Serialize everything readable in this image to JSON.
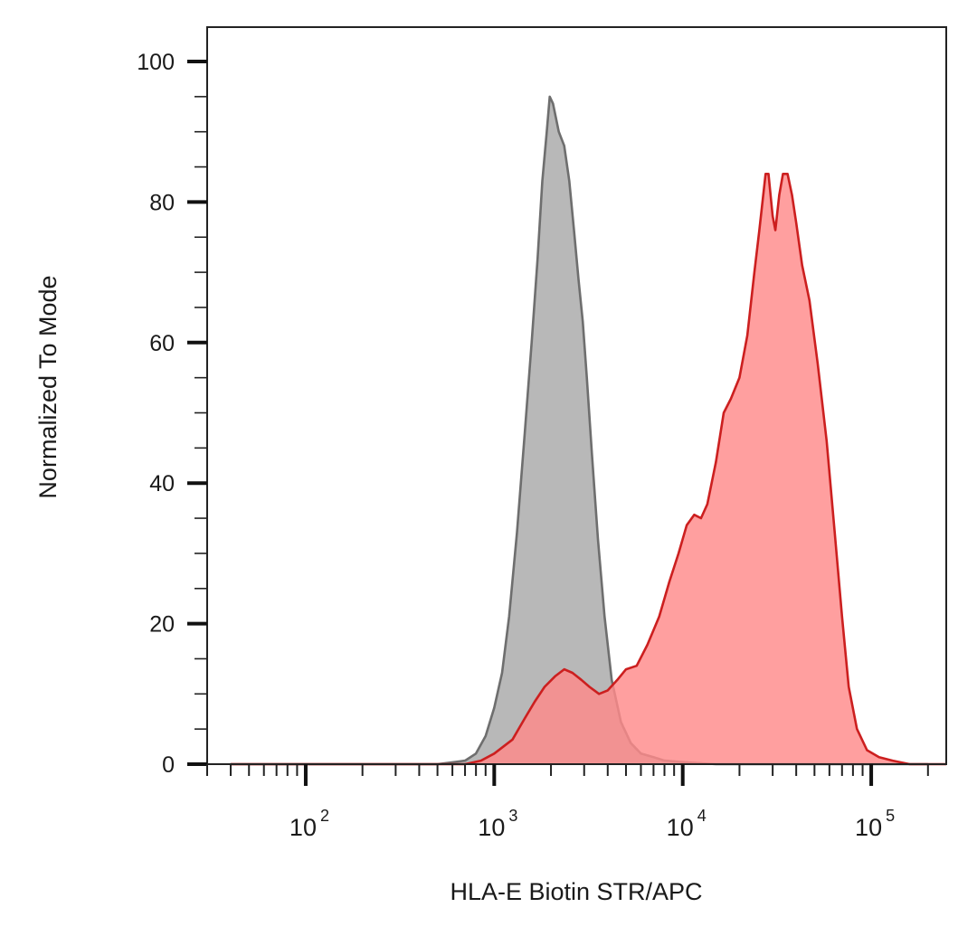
{
  "chart_data": {
    "type": "area",
    "title": "",
    "xlabel": "HLA-E Biotin STR/APC",
    "ylabel": "Normalized To Mode",
    "xscale": "log",
    "xlim": [
      30,
      250000
    ],
    "ylim": [
      0,
      100
    ],
    "grid": false,
    "legend": "none",
    "yticks": [
      {
        "value": 0,
        "label": "0"
      },
      {
        "value": 20,
        "label": "20"
      },
      {
        "value": 40,
        "label": "40"
      },
      {
        "value": 60,
        "label": "60"
      },
      {
        "value": 80,
        "label": "80"
      },
      {
        "value": 100,
        "label": "100"
      }
    ],
    "xticks": [
      {
        "value": 100,
        "base": "10",
        "exp": "2"
      },
      {
        "value": 1000,
        "base": "10",
        "exp": "3"
      },
      {
        "value": 10000,
        "base": "10",
        "exp": "4"
      },
      {
        "value": 100000,
        "base": "10",
        "exp": "5"
      }
    ],
    "series": [
      {
        "color": "#6e6e6e",
        "fill": "#b8b8b8",
        "points": [
          [
            40,
            0
          ],
          [
            500,
            0
          ],
          [
            700,
            0.5
          ],
          [
            800,
            1.5
          ],
          [
            900,
            4
          ],
          [
            1000,
            8
          ],
          [
            1100,
            13
          ],
          [
            1200,
            21
          ],
          [
            1320,
            33
          ],
          [
            1450,
            47
          ],
          [
            1580,
            60
          ],
          [
            1700,
            72
          ],
          [
            1800,
            83
          ],
          [
            1900,
            90
          ],
          [
            1970,
            95
          ],
          [
            2050,
            94
          ],
          [
            2200,
            90
          ],
          [
            2350,
            88
          ],
          [
            2500,
            83
          ],
          [
            2650,
            76
          ],
          [
            2800,
            69
          ],
          [
            2950,
            63
          ],
          [
            3100,
            55
          ],
          [
            3300,
            44
          ],
          [
            3550,
            32
          ],
          [
            3850,
            21
          ],
          [
            4200,
            12
          ],
          [
            4700,
            6
          ],
          [
            5300,
            3
          ],
          [
            6000,
            1.5
          ],
          [
            7000,
            1
          ],
          [
            8000,
            0.5
          ],
          [
            10000,
            0.3
          ],
          [
            15000,
            0
          ],
          [
            200000,
            0
          ]
        ]
      },
      {
        "color": "#cc1f1f",
        "fill": "#ff8a8a",
        "points": [
          [
            40,
            0
          ],
          [
            700,
            0
          ],
          [
            850,
            0.5
          ],
          [
            1000,
            1.5
          ],
          [
            1250,
            3.5
          ],
          [
            1450,
            6.5
          ],
          [
            1650,
            9
          ],
          [
            1850,
            11
          ],
          [
            2100,
            12.5
          ],
          [
            2350,
            13.5
          ],
          [
            2600,
            13
          ],
          [
            2900,
            12
          ],
          [
            3200,
            11
          ],
          [
            3600,
            10
          ],
          [
            4000,
            10.5
          ],
          [
            4500,
            12
          ],
          [
            5000,
            13.5
          ],
          [
            5700,
            14
          ],
          [
            6500,
            17
          ],
          [
            7500,
            21
          ],
          [
            8500,
            26
          ],
          [
            9500,
            30
          ],
          [
            10500,
            34
          ],
          [
            11500,
            35.5
          ],
          [
            12500,
            35
          ],
          [
            13500,
            37
          ],
          [
            15000,
            43
          ],
          [
            16500,
            50
          ],
          [
            18000,
            52
          ],
          [
            20000,
            55
          ],
          [
            22000,
            61
          ],
          [
            24000,
            70
          ],
          [
            25500,
            76
          ],
          [
            27500,
            84
          ],
          [
            28500,
            84
          ],
          [
            30000,
            78
          ],
          [
            31000,
            76
          ],
          [
            32500,
            81
          ],
          [
            34000,
            84
          ],
          [
            36000,
            84
          ],
          [
            38000,
            81
          ],
          [
            40000,
            77
          ],
          [
            43000,
            71
          ],
          [
            47000,
            66
          ],
          [
            52000,
            57
          ],
          [
            58000,
            46
          ],
          [
            64000,
            33
          ],
          [
            70000,
            21
          ],
          [
            76000,
            11
          ],
          [
            84000,
            5
          ],
          [
            95000,
            2
          ],
          [
            110000,
            1
          ],
          [
            130000,
            0.5
          ],
          [
            160000,
            0
          ],
          [
            250000,
            0
          ]
        ]
      }
    ]
  }
}
